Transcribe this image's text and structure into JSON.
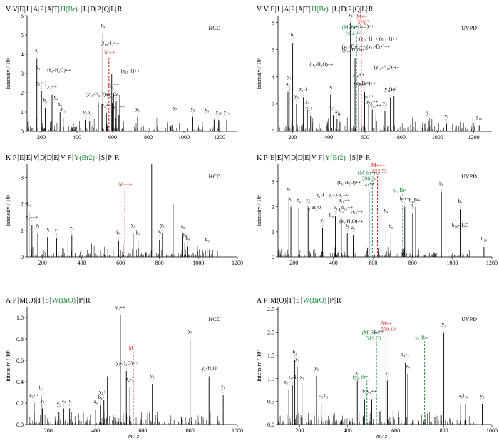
{
  "figure": {
    "x_axis_label": "m / z"
  },
  "chart_data": [
    {
      "type": "bar",
      "sequence": [
        "V",
        "V",
        "E",
        "I",
        "A",
        "P",
        "A",
        "T",
        "H(Br)",
        "L",
        "D",
        "P",
        "Q",
        "L",
        "R"
      ],
      "modified_index": 8,
      "method": "HCD",
      "ylabel": "Intensity / 10⁶",
      "xlim": [
        120,
        1300
      ],
      "ylim": [
        0,
        6
      ],
      "xticks": [
        200,
        400,
        600,
        800,
        1000,
        1200
      ],
      "yticks": [
        0,
        1,
        2,
        3,
        4,
        5,
        6
      ],
      "precursor": {
        "label": "M++",
        "mz": 579.3,
        "intensity": 3.9,
        "mass_label": ""
      },
      "markers": [],
      "peaks": [
        {
          "mz": 175,
          "i": 3.8,
          "label": "a₂"
        },
        {
          "mz": 182,
          "i": 2.9,
          "label": "y₁"
        },
        {
          "mz": 201,
          "i": 2.1,
          "label": "z₂+·1"
        },
        {
          "mz": 222,
          "i": 1.2,
          "label": "b₂"
        },
        {
          "mz": 260,
          "i": 1.9,
          "label": "y₄++"
        },
        {
          "mz": 282,
          "i": 1.35,
          "label": "y₂"
        },
        {
          "mz": 305,
          "i": 1.0,
          "label": "x₂"
        },
        {
          "mz": 323,
          "i": 0.7,
          "label": "b₃"
        },
        {
          "mz": 446,
          "i": 0.6,
          "label": "y₃"
        },
        {
          "mz": 471,
          "i": 0.55,
          "label": "b₄"
        },
        {
          "mz": 520,
          "i": 1.5,
          "label": "(y₁₀-H₂O)++"
        },
        {
          "mz": 545,
          "i": 5.1,
          "label": "y₄"
        },
        {
          "mz": 565,
          "i": 0.95,
          "label": "y₅++"
        },
        {
          "mz": 598,
          "i": 1.45,
          "label": "y₁₀++"
        },
        {
          "mz": 605,
          "i": 2.0,
          "label": "z₁₁++"
        },
        {
          "mz": 620,
          "i": 1.55,
          "label": "y₅"
        },
        {
          "mz": 635,
          "i": 0.85,
          "label": "y₁₁++"
        },
        {
          "mz": 740,
          "i": 0.75,
          "label": "y₆"
        },
        {
          "mz": 950,
          "i": 0.8,
          "label": "y₇"
        },
        {
          "mz": 1050,
          "i": 0.75,
          "label": "y₈"
        },
        {
          "mz": 1130,
          "i": 0.7,
          "label": "y₉"
        },
        {
          "mz": 1195,
          "i": 0.6,
          "label": "y₁₀"
        },
        {
          "mz": 1240,
          "i": 0.6,
          "label": "y₁₁"
        },
        {
          "mz": 595,
          "i": 3.0,
          "label": ""
        },
        {
          "mz": 640,
          "i": 1.9,
          "label": ""
        },
        {
          "mz": 540,
          "i": 1.4,
          "label": ""
        }
      ],
      "labels_extra": [
        {
          "text": "(b₈-H₂O)++",
          "mz": 300,
          "y": 3.1
        },
        {
          "text": "(z₁₀-1)++",
          "mz": 585,
          "y": 4.5
        },
        {
          "text": "(z₁₀-1)++",
          "mz": 700,
          "y": 3.05
        }
      ]
    },
    {
      "type": "bar",
      "sequence": [
        "V",
        "V",
        "E",
        "I",
        "A",
        "P",
        "A",
        "T",
        "H(Br)",
        "L",
        "D",
        "P",
        "Q",
        "L",
        "R"
      ],
      "modified_index": 8,
      "method": "UVPD",
      "ylabel": "Intensity / 10⁵",
      "xlim": [
        120,
        1300
      ],
      "ylim": [
        0,
        8.5
      ],
      "xticks": [
        200,
        400,
        600,
        800,
        1000,
        1200
      ],
      "yticks": [
        0,
        2,
        4,
        6,
        8
      ],
      "precursor": {
        "label": "M++",
        "mz": 579.3,
        "intensity": 7.8,
        "mass_label": "579.3"
      },
      "markers": [
        {
          "label": "(M-Br•)++",
          "mz": 552.97,
          "intensity": 7.0,
          "mass_label": "552.97",
          "color": "#1a8a3a"
        }
      ],
      "peaks": [
        {
          "mz": 175,
          "i": 2.9,
          "label": "a₂"
        },
        {
          "mz": 182,
          "i": 3.4,
          "label": "y₁"
        },
        {
          "mz": 201,
          "i": 6.5,
          "label": "b₂"
        },
        {
          "mz": 222,
          "i": 2.0,
          "label": "y₂"
        },
        {
          "mz": 260,
          "i": 2.5,
          "label": "z₂-1"
        },
        {
          "mz": 282,
          "i": 1.6,
          "label": "y₂"
        },
        {
          "mz": 300,
          "i": 1.1,
          "label": "y₅++"
        },
        {
          "mz": 410,
          "i": 2.7,
          "label": "a₄"
        },
        {
          "mz": 425,
          "i": 1.2,
          "label": "z₁-1"
        },
        {
          "mz": 446,
          "i": 0.9,
          "label": "x₃"
        },
        {
          "mz": 462,
          "i": 0.7,
          "label": "a₄"
        },
        {
          "mz": 520,
          "i": 8.0,
          "label": "y₄"
        },
        {
          "mz": 545,
          "i": 5.4,
          "label": "(y₁₀-H₂O)++"
        },
        {
          "mz": 565,
          "i": 3.6,
          "label": "y₁₂++"
        },
        {
          "mz": 598,
          "i": 2.9,
          "label": "y₁₀++"
        },
        {
          "mz": 620,
          "i": 2.0,
          "label": "y₅++"
        },
        {
          "mz": 640,
          "i": 1.6,
          "label": "y₁₀++"
        },
        {
          "mz": 660,
          "i": 1.3,
          "label": "y₁₂++"
        },
        {
          "mz": 710,
          "i": 1.5,
          "label": "y₆"
        },
        {
          "mz": 740,
          "i": 2.5,
          "label": "y₁₂++"
        },
        {
          "mz": 760,
          "i": 2.6,
          "label": "y₁₃++"
        },
        {
          "mz": 950,
          "i": 0.8,
          "label": "y₇"
        },
        {
          "mz": 1050,
          "i": 0.55,
          "label": "y₈"
        },
        {
          "mz": 1230,
          "i": 0.45,
          "label": "y₁₀"
        }
      ],
      "labels_extra": [
        {
          "text": "(y₁₀-H₂O)++",
          "mz": 580,
          "y": 7.6
        },
        {
          "text": "(z₁₀-1)++",
          "mz": 620,
          "y": 6.7
        },
        {
          "text": "(y₁₃-Br•)++/(y₁₃-Br•)++",
          "mz": 605,
          "y": 6.1
        },
        {
          "text": "(z₁₃-1)++",
          "mz": 730,
          "y": 6.7
        },
        {
          "text": "(b₈-H₂O)++",
          "mz": 360,
          "y": 4.8
        },
        {
          "text": "(y₁₀-H₂O)++",
          "mz": 720,
          "y": 4.6
        },
        {
          "text": "(y₉-Br•)++",
          "mz": 600,
          "y": 3.4
        }
      ]
    },
    {
      "type": "bar",
      "sequence": [
        "K",
        "P",
        "E",
        "E",
        "V",
        "D",
        "D",
        "E",
        "V",
        "F",
        "Y(Br2)",
        "S",
        "P",
        "R"
      ],
      "modified_index": 10,
      "method": "HCD",
      "ylabel": "Intensity / 10⁶",
      "xlim": [
        120,
        1200
      ],
      "ylim": [
        0,
        3.5
      ],
      "xticks": [
        200,
        400,
        600,
        800,
        1000,
        1200
      ],
      "yticks": [
        0,
        1,
        2,
        3
      ],
      "precursor": {
        "label": "M+++",
        "mz": 622.55,
        "intensity": 2.6,
        "mass_label": ""
      },
      "markers": [],
      "peaks": [
        {
          "mz": 130,
          "i": 1.7,
          "label": "b₁"
        },
        {
          "mz": 145,
          "i": 1.2,
          "label": "x₂+++"
        },
        {
          "mz": 175,
          "i": 0.9,
          "label": "y₁"
        },
        {
          "mz": 225,
          "i": 0.75,
          "label": "b₂"
        },
        {
          "mz": 272,
          "i": 0.7,
          "label": "y₂"
        },
        {
          "mz": 350,
          "i": 0.8,
          "label": "y₃"
        },
        {
          "mz": 590,
          "i": 0.6,
          "label": "b₅"
        },
        {
          "mz": 665,
          "i": 0.9,
          "label": "y₄"
        },
        {
          "mz": 690,
          "i": 0.6,
          "label": "b₆"
        },
        {
          "mz": 760,
          "i": 3.5,
          "label": ""
        },
        {
          "mz": 800,
          "i": 0.65,
          "label": "b₇"
        },
        {
          "mz": 815,
          "i": 0.9,
          "label": "y₅"
        },
        {
          "mz": 870,
          "i": 2.0,
          "label": ""
        },
        {
          "mz": 920,
          "i": 0.85,
          "label": "a₈"
        },
        {
          "mz": 930,
          "i": 0.55,
          "label": "y₆"
        },
        {
          "mz": 945,
          "i": 0.4,
          "label": "b₈"
        },
        {
          "mz": 1045,
          "i": 0.35,
          "label": "b₉"
        },
        {
          "mz": 330,
          "i": 0.6,
          "label": ""
        },
        {
          "mz": 450,
          "i": 0.5,
          "label": ""
        }
      ],
      "labels_extra": []
    },
    {
      "type": "bar",
      "sequence": [
        "K",
        "P",
        "E",
        "E",
        "V",
        "D",
        "D",
        "E",
        "V",
        "F",
        "Y(Br2)",
        "S",
        "P",
        "R"
      ],
      "modified_index": 10,
      "method": "UVPD",
      "ylabel": "Intensity / 10⁵",
      "xlim": [
        120,
        1200
      ],
      "ylim": [
        0,
        3.7
      ],
      "xticks": [
        200,
        400,
        600,
        800,
        1000,
        1200
      ],
      "yticks": [
        0,
        1,
        2,
        3
      ],
      "precursor": {
        "label": "M+++",
        "mz": 622.55,
        "intensity": 3.3,
        "mass_label": "622.55"
      },
      "markers": [
        {
          "label": "(M-Br•)++",
          "mz": 596.24,
          "intensity": 3.0,
          "mass_label": "596.24",
          "color": "#1a8a3a"
        },
        {
          "label": "y₃-Br•",
          "mz": 750,
          "intensity": 2.5,
          "mass_label": "",
          "color": "#1a8a3a"
        }
      ],
      "peaks": [
        {
          "mz": 175,
          "i": 2.4,
          "label": "y₁"
        },
        {
          "mz": 185,
          "i": 2.0,
          "label": "x₁"
        },
        {
          "mz": 225,
          "i": 1.95,
          "label": "b₂"
        },
        {
          "mz": 272,
          "i": 1.95,
          "label": "y₂"
        },
        {
          "mz": 345,
          "i": 1.15,
          "label": "y₃"
        },
        {
          "mz": 410,
          "i": 1.65,
          "label": "b₄"
        },
        {
          "mz": 440,
          "i": 1.55,
          "label": "b₅"
        },
        {
          "mz": 470,
          "i": 0.95,
          "label": "a₈"
        },
        {
          "mz": 500,
          "i": 0.85,
          "label": "a₅"
        },
        {
          "mz": 580,
          "i": 2.6,
          "label": "c₈₁++"
        },
        {
          "mz": 665,
          "i": 1.55,
          "label": "y₄"
        },
        {
          "mz": 690,
          "i": 0.9,
          "label": "b₆"
        },
        {
          "mz": 760,
          "i": 2.0,
          "label": "b₇++"
        },
        {
          "mz": 800,
          "i": 1.75,
          "label": "b₇"
        },
        {
          "mz": 815,
          "i": 2.0,
          "label": "y₅"
        },
        {
          "mz": 945,
          "i": 2.6,
          "label": "b₈"
        },
        {
          "mz": 1040,
          "i": 1.9,
          "label": "b₉"
        },
        {
          "mz": 1160,
          "i": 0.4,
          "label": "b₁₀"
        }
      ],
      "labels_extra": [
        {
          "text": "(b₆-H₂O)++",
          "mz": 480,
          "y": 2.9
        },
        {
          "text": "z₁-1",
          "mz": 335,
          "y": 2.4
        },
        {
          "text": "y₇++",
          "mz": 400,
          "y": 2.4
        },
        {
          "text": "b₇++",
          "mz": 450,
          "y": 2.4
        },
        {
          "text": "a₁₀++",
          "mz": 455,
          "y": 2.2
        },
        {
          "text": "b₃-H₂O",
          "mz": 300,
          "y": 1.9
        },
        {
          "text": "b₉",
          "mz": 390,
          "y": 1.6
        },
        {
          "text": "b₁₀++",
          "mz": 470,
          "y": 1.9
        },
        {
          "text": "(a₉-H₂O)++",
          "mz": 490,
          "y": 1.35
        },
        {
          "text": "a₁₀++",
          "mz": 520,
          "y": 1.75
        },
        {
          "text": "b₁₀-H₂O",
          "mz": 1040,
          "y": 1.2
        },
        {
          "text": "b₁₀++",
          "mz": 810,
          "y": 2.2
        }
      ]
    },
    {
      "type": "bar",
      "sequence": [
        "A",
        "P",
        "M(O)",
        "F",
        "S",
        "W(BrO)",
        "P",
        "R"
      ],
      "modified_index": 5,
      "method": "HCD",
      "ylabel": "Intensity / 10⁶",
      "xlim": [
        110,
        1000
      ],
      "ylim": [
        0,
        1.1
      ],
      "xticks": [
        200,
        400,
        600,
        800,
        1000
      ],
      "yticks": [
        0,
        0.2,
        0.4,
        0.6,
        0.8,
        1.0
      ],
      "precursor": {
        "label": "M++",
        "mz": 559.19,
        "intensity": 0.68,
        "mass_label": ""
      },
      "markers": [],
      "peaks": [
        {
          "mz": 140,
          "i": 0.2,
          "label": "z₂++"
        },
        {
          "mz": 170,
          "i": 0.27,
          "label": "b₂"
        },
        {
          "mz": 175,
          "i": 0.15,
          "label": "y₁"
        },
        {
          "mz": 245,
          "i": 0.12,
          "label": "y₂"
        },
        {
          "mz": 265,
          "i": 0.15,
          "label": "a₃"
        },
        {
          "mz": 290,
          "i": 0.15,
          "label": "b₃"
        },
        {
          "mz": 400,
          "i": 0.14,
          "label": "a₄"
        },
        {
          "mz": 420,
          "i": 0.18,
          "label": "b₄"
        },
        {
          "mz": 435,
          "i": 0.23,
          "label": "y₄++"
        },
        {
          "mz": 505,
          "i": 1.02,
          "label": "y₃++"
        },
        {
          "mz": 530,
          "i": 0.5,
          "label": "(y₃-H₂O)++"
        },
        {
          "mz": 545,
          "i": 0.35,
          "label": "z₂-1"
        },
        {
          "mz": 640,
          "i": 0.38,
          "label": "y₄"
        },
        {
          "mz": 800,
          "i": 0.8,
          "label": "y₅"
        },
        {
          "mz": 880,
          "i": 0.45,
          "label": "y₆-H₂O"
        },
        {
          "mz": 940,
          "i": 0.28,
          "label": "y₆"
        },
        {
          "mz": 450,
          "i": 0.45,
          "label": ""
        },
        {
          "mz": 380,
          "i": 0.2,
          "label": ""
        }
      ],
      "labels_extra": []
    },
    {
      "type": "bar",
      "sequence": [
        "A",
        "P",
        "M(O)",
        "F",
        "S",
        "W(BrO)",
        "P",
        "R"
      ],
      "modified_index": 5,
      "method": "UVPD",
      "ylabel": "Intensity / 10⁴",
      "xlim": [
        110,
        1000
      ],
      "ylim": [
        0,
        2.55
      ],
      "xticks": [
        200,
        400,
        600,
        800,
        1000
      ],
      "yticks": [
        0,
        0.5,
        1.0,
        1.5,
        2.0,
        2.5
      ],
      "precursor": {
        "label": "M++",
        "mz": 559.19,
        "intensity": 2.0,
        "mass_label": "559.19"
      },
      "markers": [
        {
          "label": "(M-Br•)++",
          "mz": 519.73,
          "intensity": 1.8,
          "mass_label": "519.73",
          "color": "#1a8a3a"
        },
        {
          "label": "(y₃-Br•)++",
          "mz": 480,
          "intensity": 0.95,
          "mass_label": "",
          "color": "#1a8a3a"
        },
        {
          "label": "y₃-Br•",
          "mz": 720,
          "intensity": 1.8,
          "mass_label": "",
          "color": "#1a8a3a"
        }
      ],
      "peaks": [
        {
          "mz": 155,
          "i": 0.75,
          "label": "z₂++"
        },
        {
          "mz": 170,
          "i": 0.85,
          "label": "z₁-1"
        },
        {
          "mz": 180,
          "i": 1.4,
          "label": "b₂"
        },
        {
          "mz": 190,
          "i": 1.25,
          "label": "y₁"
        },
        {
          "mz": 210,
          "i": 0.85,
          "label": "x₁"
        },
        {
          "mz": 270,
          "i": 1.05,
          "label": "y₂"
        },
        {
          "mz": 290,
          "i": 0.45,
          "label": "a₃"
        },
        {
          "mz": 310,
          "i": 0.45,
          "label": "b₃"
        },
        {
          "mz": 440,
          "i": 0.95,
          "label": "a₄"
        },
        {
          "mz": 470,
          "i": 0.55,
          "label": "b₄"
        },
        {
          "mz": 500,
          "i": 0.55,
          "label": "y₅++"
        },
        {
          "mz": 530,
          "i": 1.85,
          "label": "y₃++"
        },
        {
          "mz": 565,
          "i": 0.95,
          "label": "y₃"
        },
        {
          "mz": 640,
          "i": 1.35,
          "label": "z₄-1"
        },
        {
          "mz": 650,
          "i": 1.1,
          "label": "y₄"
        },
        {
          "mz": 800,
          "i": 2.0,
          "label": "y₅"
        },
        {
          "mz": 870,
          "i": 0.45,
          "label": "a₆"
        },
        {
          "mz": 890,
          "i": 0.45,
          "label": "b₆"
        },
        {
          "mz": 960,
          "i": 0.45,
          "label": "y₆"
        }
      ],
      "labels_extra": []
    }
  ]
}
